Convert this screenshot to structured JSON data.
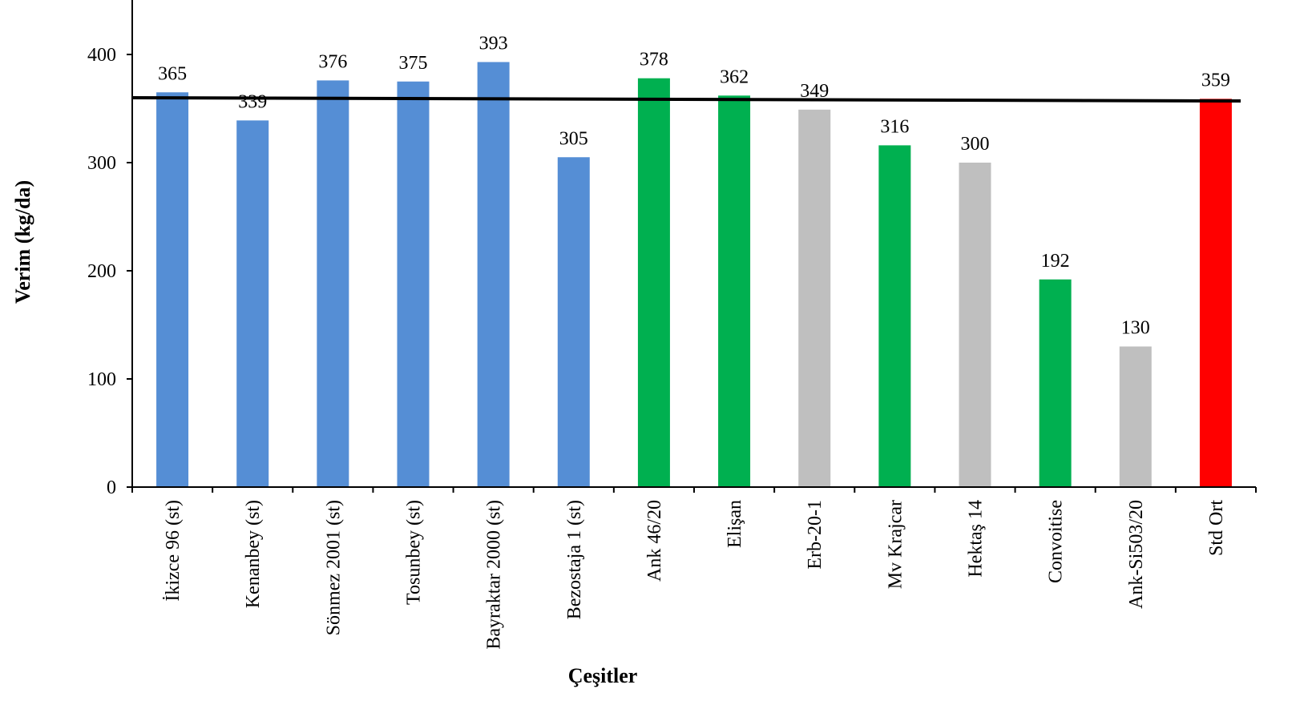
{
  "chart_data": {
    "type": "bar",
    "categories": [
      "İkizce 96 (st)",
      "Kenanbey (st)",
      "Sönmez 2001 (st)",
      "Tosunbey (st)",
      "Bayraktar 2000 (st)",
      "Bezostaja 1 (st)",
      "Ank 46/20",
      "Elişan",
      "Erb-20-1",
      "Mv Krajcar",
      "Hektaş 14",
      "Convoitise",
      "Ank-Si503/20",
      "Std Ort"
    ],
    "values": [
      365,
      339,
      376,
      375,
      393,
      305,
      378,
      362,
      349,
      316,
      300,
      192,
      130,
      359
    ],
    "bar_colors": [
      "#558ed5",
      "#558ed5",
      "#558ed5",
      "#558ed5",
      "#558ed5",
      "#558ed5",
      "#00b050",
      "#00b050",
      "#bfbfbf",
      "#00b050",
      "#bfbfbf",
      "#00b050",
      "#bfbfbf",
      "#ff0000"
    ],
    "data_labels": [
      "365",
      "339",
      "376",
      "375",
      "393",
      "305",
      "378",
      "362",
      "349",
      "316",
      "300",
      "192",
      "130",
      "359"
    ],
    "xlabel": "Çeşitler",
    "ylabel": "Verim (kg/da)",
    "ylim": [
      0,
      400
    ],
    "yticks": [
      0,
      100,
      200,
      300,
      400
    ],
    "reference_line": {
      "start_value": 360,
      "end_value": 357,
      "color": "#000000"
    },
    "grid": false,
    "legend": "none"
  }
}
